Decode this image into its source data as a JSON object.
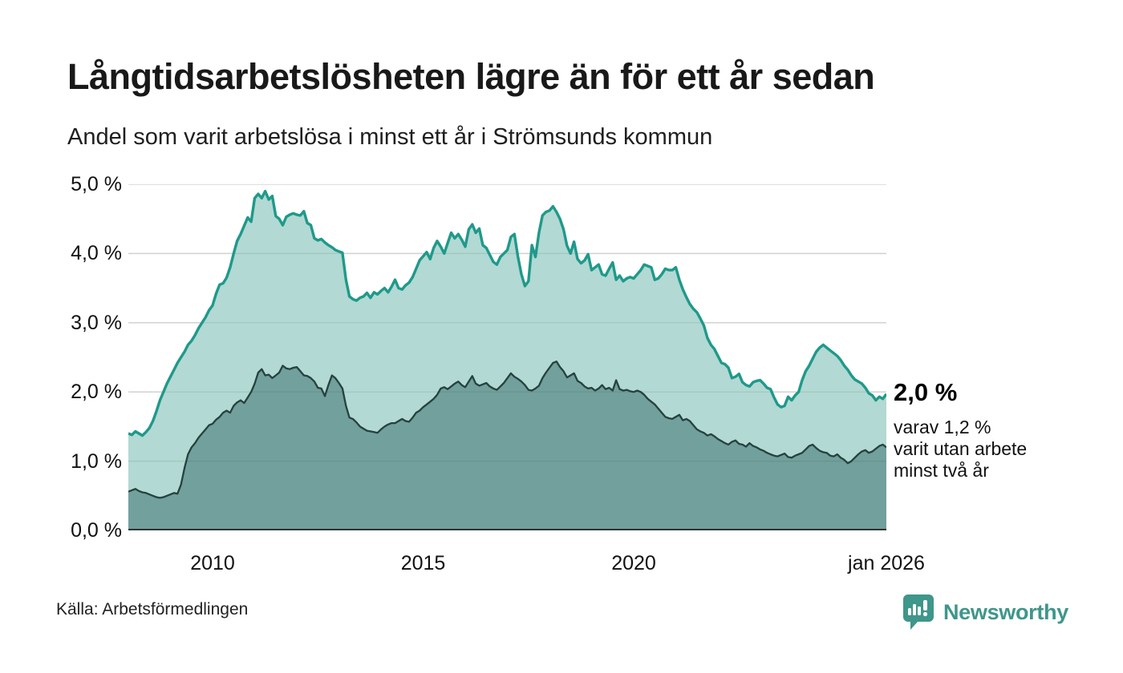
{
  "header": {
    "title": "Långtidsarbetslösheten lägre än för ett år sedan",
    "subtitle": "Andel som varit arbetslösa i minst ett år i Strömsunds kommun"
  },
  "annotation": {
    "headline": "2,0 %",
    "lines": [
      "varav 1,2 %",
      "varit utan arbete",
      "minst två år"
    ]
  },
  "footer": {
    "source": "Källa: Arbetsförmedlingen",
    "brand": "Newsworthy",
    "brand_icon": "bar-chart-speech-bubble"
  },
  "colors": {
    "accent_line": "#1f998a",
    "upper_fill": "#abd6cf",
    "lower_line": "#25423e",
    "lower_fill": "#6f9d99",
    "grid": "#e2e2e2",
    "grid_overlay": "rgba(0,0,0,0.08)",
    "axis": "#333333",
    "brand": "#3f968b"
  },
  "chart_data": {
    "type": "area",
    "title": "Långtidsarbetslösheten lägre än för ett år sedan",
    "subtitle": "Andel som varit arbetslösa i minst ett år i Strömsunds kommun",
    "interval": "monthly",
    "x_start_year": 2008,
    "x_end_year": 2026,
    "x_end_label": "jan 2026",
    "ylim": [
      0,
      5
    ],
    "grid": true,
    "y_ticks": [
      0,
      1,
      2,
      3,
      4,
      5
    ],
    "y_tick_labels": [
      "0,0 %",
      "1,0 %",
      "2,0 %",
      "3,0 %",
      "4,0 %",
      "5,0 %"
    ],
    "x_tick_years": [
      2010,
      2015,
      2020,
      2026
    ],
    "x_tick_labels": [
      "2010",
      "2015",
      "2020",
      "jan 2026"
    ],
    "legend_position": "right-annotation",
    "series": [
      {
        "name": "Andel arbetslösa minst ett år",
        "latest_value": 2.0,
        "latest_label": "2,0 %",
        "line_color": "#1f998a",
        "fill_color": "#abd6cf",
        "values": [
          1.4,
          1.38,
          1.43,
          1.4,
          1.37,
          1.42,
          1.48,
          1.58,
          1.72,
          1.88,
          2.0,
          2.12,
          2.22,
          2.32,
          2.42,
          2.5,
          2.58,
          2.68,
          2.74,
          2.82,
          2.92,
          3.0,
          3.08,
          3.18,
          3.25,
          3.42,
          3.55,
          3.57,
          3.65,
          3.8,
          4.0,
          4.18,
          4.28,
          4.4,
          4.52,
          4.46,
          4.8,
          4.86,
          4.8,
          4.9,
          4.78,
          4.83,
          4.54,
          4.5,
          4.41,
          4.53,
          4.56,
          4.58,
          4.56,
          4.55,
          4.61,
          4.44,
          4.41,
          4.22,
          4.19,
          4.21,
          4.16,
          4.12,
          4.09,
          4.05,
          4.03,
          4.01,
          3.62,
          3.38,
          3.34,
          3.32,
          3.36,
          3.38,
          3.43,
          3.36,
          3.44,
          3.41,
          3.46,
          3.5,
          3.44,
          3.52,
          3.62,
          3.5,
          3.48,
          3.54,
          3.58,
          3.66,
          3.78,
          3.9,
          3.96,
          4.02,
          3.92,
          4.08,
          4.18,
          4.1,
          4.0,
          4.15,
          4.3,
          4.22,
          4.28,
          4.2,
          4.1,
          4.35,
          4.42,
          4.3,
          4.36,
          4.12,
          4.08,
          3.98,
          3.88,
          3.84,
          3.95,
          4.0,
          4.05,
          4.24,
          4.28,
          3.96,
          3.7,
          3.53,
          3.6,
          4.12,
          3.95,
          4.3,
          4.55,
          4.6,
          4.62,
          4.68,
          4.6,
          4.5,
          4.35,
          4.11,
          4.0,
          4.17,
          3.92,
          3.86,
          3.9,
          3.99,
          3.76,
          3.8,
          3.84,
          3.7,
          3.68,
          3.78,
          3.87,
          3.62,
          3.68,
          3.6,
          3.64,
          3.66,
          3.64,
          3.7,
          3.76,
          3.84,
          3.82,
          3.8,
          3.62,
          3.64,
          3.7,
          3.78,
          3.76,
          3.76,
          3.8,
          3.62,
          3.48,
          3.37,
          3.27,
          3.2,
          3.15,
          3.06,
          2.96,
          2.78,
          2.68,
          2.62,
          2.52,
          2.42,
          2.4,
          2.35,
          2.2,
          2.22,
          2.26,
          2.14,
          2.1,
          2.08,
          2.14,
          2.16,
          2.17,
          2.12,
          2.06,
          2.04,
          1.92,
          1.82,
          1.78,
          1.8,
          1.93,
          1.88,
          1.95,
          2.0,
          2.17,
          2.3,
          2.38,
          2.48,
          2.58,
          2.64,
          2.68,
          2.64,
          2.6,
          2.56,
          2.52,
          2.46,
          2.38,
          2.32,
          2.24,
          2.18,
          2.15,
          2.12,
          2.06,
          1.98,
          1.95,
          1.88,
          1.93,
          1.9,
          1.97
        ]
      },
      {
        "name": "Andel arbetslösa minst två år",
        "latest_value": 1.2,
        "latest_label": "1,2 %",
        "line_color": "#25423e",
        "fill_color": "#6f9d99",
        "values": [
          0.56,
          0.58,
          0.6,
          0.57,
          0.55,
          0.54,
          0.52,
          0.5,
          0.48,
          0.47,
          0.48,
          0.5,
          0.52,
          0.54,
          0.53,
          0.66,
          0.9,
          1.1,
          1.2,
          1.26,
          1.34,
          1.4,
          1.46,
          1.52,
          1.54,
          1.6,
          1.64,
          1.7,
          1.73,
          1.7,
          1.8,
          1.85,
          1.88,
          1.84,
          1.92,
          2.0,
          2.12,
          2.28,
          2.33,
          2.24,
          2.25,
          2.2,
          2.24,
          2.28,
          2.38,
          2.34,
          2.33,
          2.35,
          2.36,
          2.3,
          2.24,
          2.23,
          2.2,
          2.15,
          2.06,
          2.05,
          1.94,
          2.1,
          2.24,
          2.2,
          2.13,
          2.05,
          1.8,
          1.63,
          1.61,
          1.56,
          1.5,
          1.47,
          1.44,
          1.43,
          1.42,
          1.41,
          1.46,
          1.5,
          1.53,
          1.55,
          1.55,
          1.58,
          1.61,
          1.58,
          1.57,
          1.63,
          1.7,
          1.73,
          1.78,
          1.82,
          1.86,
          1.9,
          1.96,
          2.05,
          2.07,
          2.04,
          2.08,
          2.12,
          2.15,
          2.1,
          2.07,
          2.15,
          2.23,
          2.12,
          2.09,
          2.11,
          2.13,
          2.08,
          2.05,
          2.03,
          2.08,
          2.13,
          2.2,
          2.27,
          2.22,
          2.19,
          2.15,
          2.1,
          2.03,
          2.02,
          2.05,
          2.09,
          2.2,
          2.28,
          2.35,
          2.42,
          2.44,
          2.36,
          2.3,
          2.21,
          2.24,
          2.27,
          2.16,
          2.13,
          2.08,
          2.05,
          2.06,
          2.02,
          2.05,
          2.1,
          2.04,
          2.06,
          2.02,
          2.17,
          2.04,
          2.02,
          2.03,
          2.01,
          2.0,
          2.02,
          2.0,
          1.96,
          1.9,
          1.86,
          1.82,
          1.76,
          1.7,
          1.64,
          1.62,
          1.61,
          1.64,
          1.67,
          1.59,
          1.61,
          1.58,
          1.52,
          1.46,
          1.43,
          1.41,
          1.37,
          1.39,
          1.36,
          1.32,
          1.29,
          1.26,
          1.24,
          1.28,
          1.3,
          1.25,
          1.24,
          1.21,
          1.26,
          1.22,
          1.2,
          1.17,
          1.15,
          1.12,
          1.1,
          1.08,
          1.07,
          1.09,
          1.11,
          1.06,
          1.05,
          1.08,
          1.1,
          1.12,
          1.17,
          1.22,
          1.24,
          1.19,
          1.15,
          1.13,
          1.12,
          1.08,
          1.07,
          1.1,
          1.05,
          1.02,
          0.97,
          1.0,
          1.05,
          1.1,
          1.14,
          1.16,
          1.12,
          1.14,
          1.18,
          1.22,
          1.24,
          1.2
        ]
      }
    ]
  }
}
